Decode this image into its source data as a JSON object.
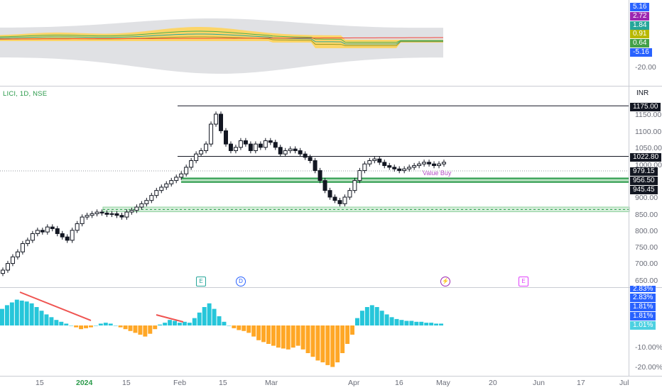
{
  "symbol_title": "LICI, 1D, NSE",
  "currency": "INR",
  "top_pane": {
    "badges": [
      {
        "text": "5.16",
        "color": "#2962ff"
      },
      {
        "text": "2.72",
        "color": "#9c27b0"
      },
      {
        "text": "1.84",
        "color": "#26a69a"
      },
      {
        "text": "0.91",
        "color": "#b8b800"
      },
      {
        "text": "0.64",
        "color": "#43a047"
      },
      {
        "text": "-5.16",
        "color": "#2962ff"
      }
    ],
    "tick": "-20.00"
  },
  "price_pane": {
    "ticks": [
      "1150.00",
      "1100.00",
      "1050.00",
      "1000.00",
      "900.00",
      "850.00",
      "800.00",
      "750.00",
      "700.00",
      "650.00"
    ],
    "badges": [
      {
        "text": "1175.00",
        "color": "#131722"
      },
      {
        "text": "1022.80",
        "color": "#131722"
      },
      {
        "text": "979.15",
        "color": "#131722"
      },
      {
        "text": "956.50",
        "color": "#131722"
      },
      {
        "text": "945.45",
        "color": "#131722"
      }
    ],
    "annotation": "Value Buy",
    "events": [
      {
        "label": "E",
        "kind": "earnings"
      },
      {
        "label": "D",
        "kind": "dividend"
      },
      {
        "label": "⚡",
        "kind": "split"
      },
      {
        "label": "E",
        "kind": "earnings-upcoming"
      }
    ]
  },
  "osc_pane": {
    "badges": [
      {
        "text": "2.83%",
        "color": "#2962ff"
      },
      {
        "text": "2.83%",
        "color": "#2962ff"
      },
      {
        "text": "1.81%",
        "color": "#2962ff"
      },
      {
        "text": "1.81%",
        "color": "#2962ff"
      },
      {
        "text": "1.01%",
        "color": "#4dd0e1"
      }
    ],
    "ticks": [
      "-10.00%",
      "-20.00%"
    ]
  },
  "x_axis": [
    "15",
    "2024",
    "15",
    "Feb",
    "15",
    "Mar",
    "Apr",
    "16",
    "May",
    "20",
    "Jun",
    "17",
    "Jul"
  ],
  "chart_data": {
    "type": "candlestick",
    "horizontal_levels": [
      1175.0,
      1022.8,
      979.15,
      956.5,
      945.45
    ]
  }
}
